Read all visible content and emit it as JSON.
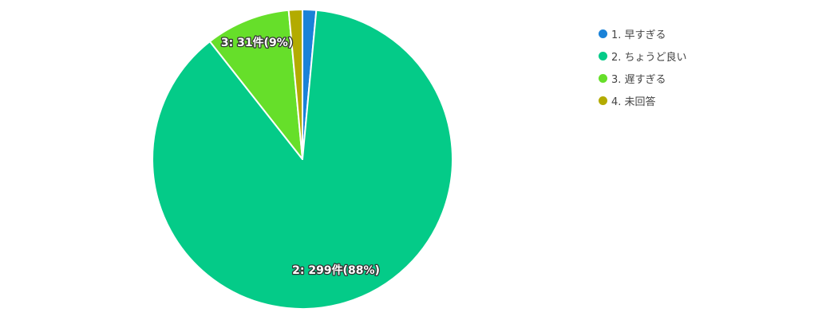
{
  "chart_data": {
    "type": "pie",
    "title": "",
    "start_angle_deg": 0,
    "direction": "clockwise",
    "legend_position": "right",
    "slices": [
      {
        "name": "1. 早すぎる",
        "value": 5,
        "color": "#1a82d8",
        "label": ""
      },
      {
        "name": "2. ちょうど良い",
        "value": 299,
        "color": "#04cb88",
        "label": "2: 299件(88%)"
      },
      {
        "name": "3. 遅すぎる",
        "value": 31,
        "color": "#66df2a",
        "label": "3: 31件(9%)"
      },
      {
        "name": "4. 未回答",
        "value": 5,
        "color": "#b3ab00",
        "label": ""
      }
    ]
  }
}
